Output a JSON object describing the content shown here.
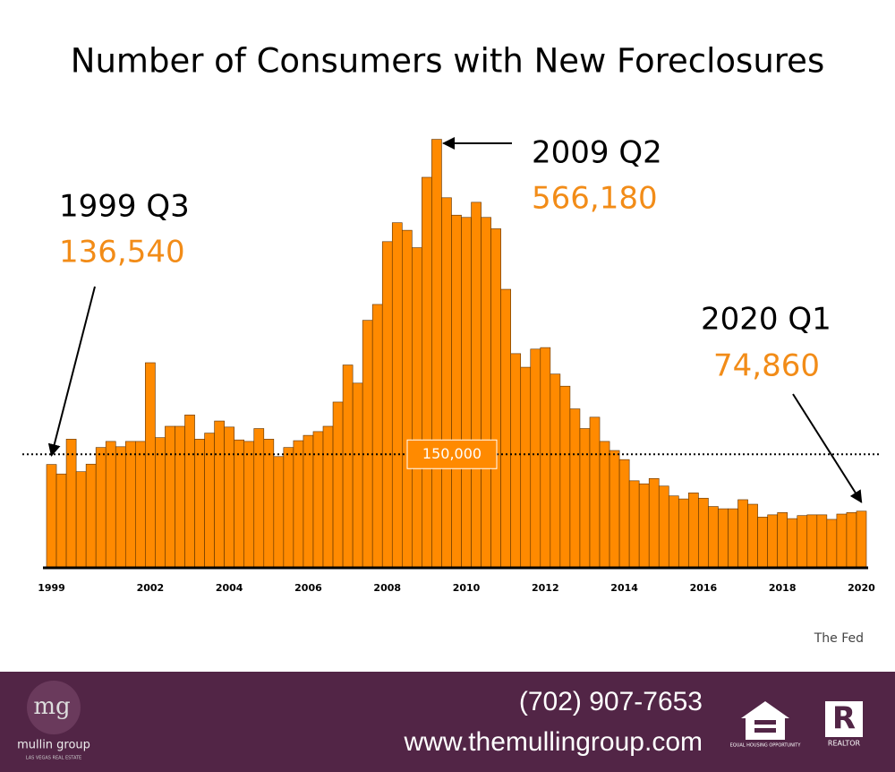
{
  "chart_data": {
    "type": "bar",
    "title": "Number of Consumers with New Foreclosures",
    "categories": [
      "1999",
      null,
      null,
      null,
      null,
      null,
      null,
      null,
      null,
      null,
      "2002",
      null,
      null,
      null,
      null,
      null,
      null,
      null,
      "2004",
      null,
      null,
      null,
      null,
      null,
      null,
      null,
      "2006",
      null,
      null,
      null,
      null,
      null,
      null,
      null,
      "2008",
      null,
      null,
      null,
      null,
      null,
      null,
      null,
      "2010",
      null,
      null,
      null,
      null,
      null,
      null,
      null,
      "2012",
      null,
      null,
      null,
      null,
      null,
      null,
      null,
      "2014",
      null,
      null,
      null,
      null,
      null,
      null,
      null,
      "2016",
      null,
      null,
      null,
      null,
      null,
      null,
      null,
      "2018",
      null,
      null,
      null,
      null,
      null,
      null,
      null,
      "2020"
    ],
    "values": [
      136540,
      124000,
      170000,
      127000,
      137000,
      159000,
      167000,
      160000,
      167000,
      167000,
      271000,
      172000,
      187000,
      187000,
      202000,
      170000,
      178000,
      194000,
      186000,
      169000,
      167000,
      184000,
      170000,
      147000,
      159000,
      168000,
      175000,
      180000,
      187000,
      219000,
      268000,
      244000,
      327000,
      348000,
      431000,
      456000,
      446000,
      423000,
      516000,
      566180,
      489000,
      466000,
      463000,
      483000,
      463000,
      448000,
      368000,
      283000,
      265000,
      289000,
      291000,
      256000,
      240000,
      210000,
      184000,
      199000,
      167000,
      155000,
      143000,
      115000,
      111000,
      118000,
      108000,
      95000,
      91000,
      99000,
      92000,
      81000,
      78000,
      78000,
      90000,
      84000,
      67000,
      70000,
      73000,
      65000,
      69000,
      70000,
      70000,
      64000,
      71000,
      73000,
      74860
    ],
    "value_labels": [
      "136,540",
      null,
      null,
      null,
      null,
      null,
      null,
      null,
      null,
      null,
      null,
      null,
      null,
      null,
      null,
      null,
      null,
      null,
      null,
      null,
      null,
      null,
      null,
      null,
      null,
      null,
      null,
      null,
      null,
      null,
      null,
      null,
      null,
      null,
      null,
      null,
      null,
      null,
      null,
      "566,180",
      null,
      null,
      null,
      null,
      null,
      null,
      null,
      null,
      null,
      null,
      null,
      null,
      null,
      null,
      null,
      null,
      null,
      null,
      null,
      null,
      null,
      null,
      null,
      null,
      null,
      null,
      null,
      null,
      null,
      null,
      null,
      null,
      null,
      null,
      null,
      null,
      null,
      null,
      null,
      null,
      null,
      null,
      "74,860"
    ],
    "annotations": [
      "1999 Q3",
      "2009 Q2",
      "2020 Q1"
    ],
    "reference_line": {
      "value": 150000,
      "label": "150,000"
    },
    "color": "#ff8a00",
    "ylim": [
      0,
      600000
    ],
    "source": "The Fed"
  },
  "footer": {
    "logo": "mg",
    "brand": "mullin group",
    "tagline": "LAS VEGAS REAL ESTATE",
    "phone": "(702) 907-7653",
    "website": "www.themullingroup.com",
    "equal_housing": "EQUAL HOUSING OPPORTUNITY",
    "realtor": "REALTOR"
  }
}
